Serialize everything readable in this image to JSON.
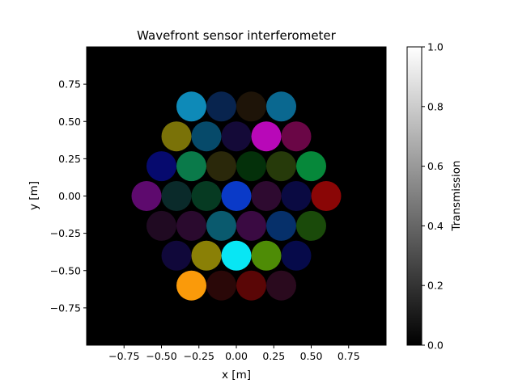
{
  "chart_data": {
    "type": "heatmap",
    "title": "Wavefront sensor interferometer",
    "xlabel": "x [m]",
    "ylabel": "y [m]",
    "xlim": [
      -1.0,
      1.0
    ],
    "ylim": [
      -1.0,
      1.0
    ],
    "xticks": [
      -0.75,
      -0.5,
      -0.25,
      0.0,
      0.25,
      0.5,
      0.75
    ],
    "xtick_labels": [
      "−0.75",
      "−0.50",
      "−0.25",
      "0.00",
      "0.25",
      "0.50",
      "0.75"
    ],
    "yticks": [
      -0.75,
      -0.5,
      -0.25,
      0.0,
      0.25,
      0.5,
      0.75
    ],
    "ytick_labels": [
      "−0.75",
      "−0.50",
      "−0.25",
      "0.00",
      "0.25",
      "0.50",
      "0.75"
    ],
    "background_color": "#000000",
    "aperture_radius": 0.1,
    "apertures": [
      {
        "x": -0.3,
        "y": 0.6,
        "color": "#0e8ab8"
      },
      {
        "x": -0.1,
        "y": 0.6,
        "color": "#08244e"
      },
      {
        "x": 0.1,
        "y": 0.6,
        "color": "#1e1408"
      },
      {
        "x": 0.3,
        "y": 0.6,
        "color": "#0a6890"
      },
      {
        "x": -0.4,
        "y": 0.4,
        "color": "#7a7208"
      },
      {
        "x": -0.2,
        "y": 0.4,
        "color": "#064a6a"
      },
      {
        "x": 0.0,
        "y": 0.4,
        "color": "#140a38"
      },
      {
        "x": 0.2,
        "y": 0.4,
        "color": "#b808b8"
      },
      {
        "x": 0.4,
        "y": 0.4,
        "color": "#6a0646"
      },
      {
        "x": -0.5,
        "y": 0.2,
        "color": "#060a6e"
      },
      {
        "x": -0.3,
        "y": 0.2,
        "color": "#0a7a4a"
      },
      {
        "x": -0.1,
        "y": 0.2,
        "color": "#2a280a"
      },
      {
        "x": 0.1,
        "y": 0.2,
        "color": "#04300a"
      },
      {
        "x": 0.3,
        "y": 0.2,
        "color": "#263a0a"
      },
      {
        "x": 0.5,
        "y": 0.2,
        "color": "#06883a"
      },
      {
        "x": -0.6,
        "y": 0.0,
        "color": "#5e0a6e"
      },
      {
        "x": -0.4,
        "y": 0.0,
        "color": "#0a2a2a"
      },
      {
        "x": -0.2,
        "y": 0.0,
        "color": "#063a22"
      },
      {
        "x": 0.0,
        "y": 0.0,
        "color": "#0a3ac8"
      },
      {
        "x": 0.2,
        "y": 0.0,
        "color": "#2e0a30"
      },
      {
        "x": 0.4,
        "y": 0.0,
        "color": "#0a0a42"
      },
      {
        "x": 0.6,
        "y": 0.0,
        "color": "#8a0606"
      },
      {
        "x": -0.5,
        "y": -0.2,
        "color": "#200a22"
      },
      {
        "x": -0.3,
        "y": -0.2,
        "color": "#2a0a2e"
      },
      {
        "x": -0.1,
        "y": -0.2,
        "color": "#0a5a6e"
      },
      {
        "x": 0.1,
        "y": -0.2,
        "color": "#3a0a42"
      },
      {
        "x": 0.3,
        "y": -0.2,
        "color": "#06306a"
      },
      {
        "x": 0.5,
        "y": -0.2,
        "color": "#1a4a0a"
      },
      {
        "x": -0.4,
        "y": -0.4,
        "color": "#10083a"
      },
      {
        "x": -0.2,
        "y": -0.4,
        "color": "#8a8006"
      },
      {
        "x": 0.0,
        "y": -0.4,
        "color": "#08e6f4"
      },
      {
        "x": 0.2,
        "y": -0.4,
        "color": "#4e8c06"
      },
      {
        "x": 0.4,
        "y": -0.4,
        "color": "#060a4a"
      },
      {
        "x": -0.3,
        "y": -0.6,
        "color": "#fa9a0a"
      },
      {
        "x": -0.1,
        "y": -0.6,
        "color": "#2a0808"
      },
      {
        "x": 0.1,
        "y": -0.6,
        "color": "#5a0606"
      },
      {
        "x": 0.3,
        "y": -0.6,
        "color": "#2a0a1e"
      }
    ],
    "colorbar": {
      "label": "Transmission",
      "min": 0.0,
      "max": 1.0,
      "ticks": [
        0.0,
        0.2,
        0.4,
        0.6,
        0.8,
        1.0
      ],
      "tick_labels": [
        "0.0",
        "0.2",
        "0.4",
        "0.6",
        "0.8",
        "1.0"
      ],
      "colormap": "gray",
      "low_color": "#000000",
      "high_color": "#ffffff"
    }
  }
}
